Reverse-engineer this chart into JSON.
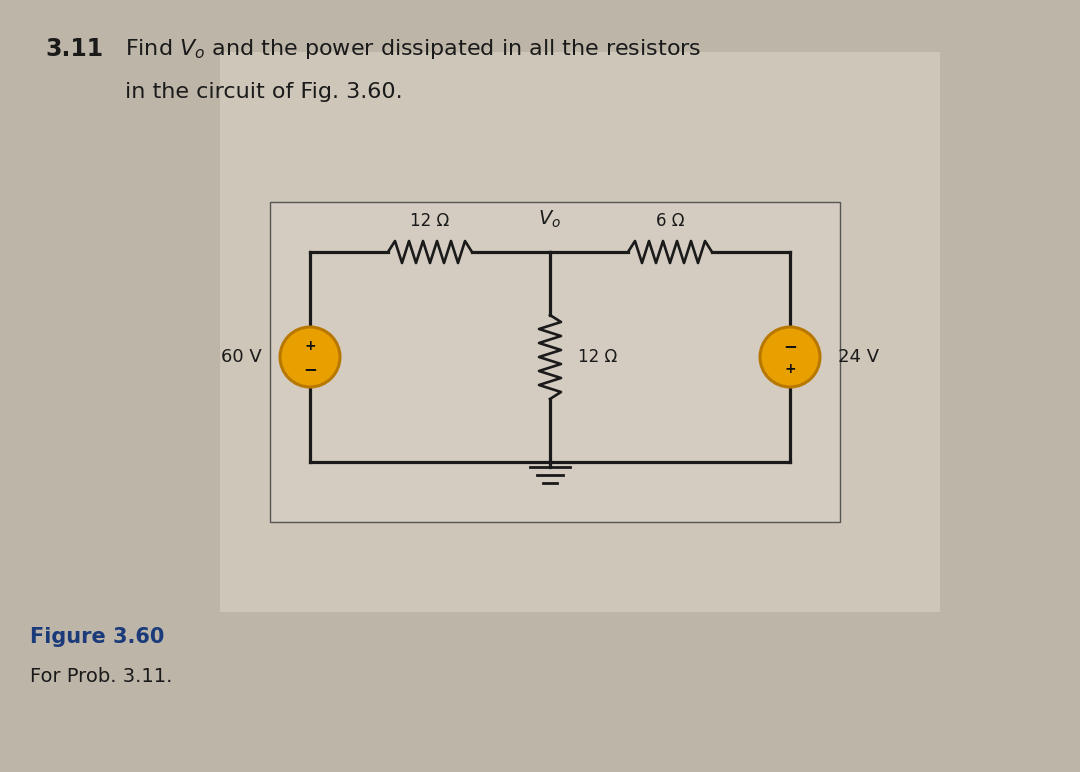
{
  "title_bold": "3.11",
  "title_text1": "Find $V_o$ and the power dissipated in all the resistors",
  "title_text2": "in the circuit of Fig. 3.60.",
  "figure_label": "Figure 3.60",
  "figure_sublabel": "For Prob. 3.11.",
  "bg_color": "#bdb5a8",
  "panel_color": "#cec6b8",
  "circuit_bg": "#d8d0c0",
  "resistor_12_top_label": "12 Ω",
  "resistor_6_label": "6 Ω",
  "resistor_12_mid_label": "12 Ω",
  "vo_label": "$V_o$",
  "v60_label": "60 V",
  "v24_label": "24 V",
  "wire_color": "#1a1a1a",
  "text_color": "#1a1a1a",
  "source_fill": "#e8a000",
  "source_edge": "#b87800",
  "ground_color": "#1a1a1a",
  "TL": [
    3.1,
    5.2
  ],
  "TM": [
    5.5,
    5.2
  ],
  "TR": [
    7.9,
    5.2
  ],
  "BL": [
    3.1,
    3.1
  ],
  "BM": [
    5.5,
    3.1
  ],
  "BR": [
    7.9,
    3.1
  ]
}
